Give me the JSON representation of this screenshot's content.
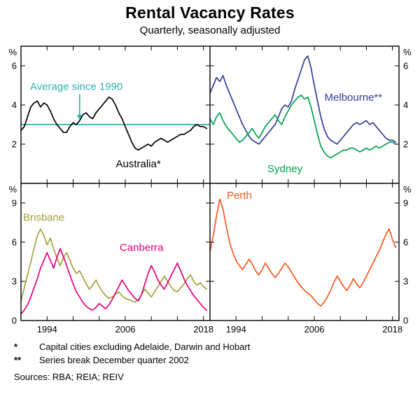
{
  "footnotes": [
    {
      "marker": "*",
      "text": "Capital cities excluding Adelaide, Darwin and Hobart"
    },
    {
      "marker": "**",
      "text": "Series break December quarter 2002"
    }
  ],
  "sources": "Sources: RBA; REIA; REIV",
  "chart_data": {
    "type": "line",
    "title": "Rental Vacancy Rates",
    "subtitle": "Quarterly, seasonally adjusted",
    "unit": "%",
    "x": {
      "start": 1990,
      "step": 0.5,
      "lim": [
        1990,
        2019
      ],
      "ticks": [
        1990,
        1994,
        1998,
        2002,
        2006,
        2010,
        2014,
        2018
      ],
      "tick_labels": [
        1994,
        2006,
        2018
      ]
    },
    "panels": [
      {
        "position": "top-left",
        "ylim": [
          0,
          7
        ],
        "yticks": [
          2,
          4,
          6
        ],
        "label_side": "left",
        "hline": {
          "label": "Average since 1990",
          "value": 3.0,
          "color": "#2fb1a8"
        },
        "series": [
          {
            "name": "Australia*",
            "color": "#000000",
            "values": [
              2.7,
              2.9,
              3.4,
              3.9,
              4.1,
              4.2,
              3.9,
              4.1,
              4.0,
              3.7,
              3.3,
              3.0,
              2.8,
              2.6,
              2.6,
              2.9,
              3.1,
              3.0,
              3.2,
              3.5,
              3.6,
              3.4,
              3.3,
              3.6,
              3.8,
              4.0,
              4.2,
              4.4,
              4.3,
              4.0,
              3.6,
              3.3,
              2.9,
              2.5,
              2.1,
              1.8,
              1.7,
              1.8,
              1.9,
              2.0,
              1.9,
              2.1,
              2.2,
              2.3,
              2.2,
              2.1,
              2.2,
              2.3,
              2.4,
              2.5,
              2.5,
              2.6,
              2.7,
              2.9,
              3.0,
              2.9,
              2.9,
              2.8
            ]
          }
        ],
        "annotations": [
          {
            "text": "Average since 1990",
            "x": 1998.5,
            "y": 4.95,
            "color": "#2fb1a8",
            "arrow": {
              "x": 1999,
              "y_from": 4.55,
              "y_to": 3.25
            }
          },
          {
            "text": "Australia*",
            "x": 2008,
            "y": 1.0,
            "color": "#000000"
          }
        ]
      },
      {
        "position": "top-right",
        "ylim": [
          0,
          7
        ],
        "yticks": [
          2,
          4,
          6
        ],
        "label_side": "right",
        "series": [
          {
            "name": "Melbourne**",
            "color": "#303d99",
            "values": [
              4.6,
              5.0,
              5.4,
              5.2,
              5.5,
              5.0,
              4.6,
              4.2,
              3.8,
              3.4,
              3.0,
              2.7,
              2.4,
              2.2,
              2.1,
              2.0,
              2.2,
              2.4,
              2.6,
              2.8,
              3.0,
              3.4,
              3.8,
              4.0,
              3.9,
              4.2,
              4.8,
              5.3,
              5.8,
              6.3,
              6.5,
              5.9,
              5.0,
              4.2,
              3.4,
              2.8,
              2.4,
              2.2,
              2.1,
              2.0,
              2.2,
              2.4,
              2.6,
              2.8,
              3.0,
              3.1,
              3.0,
              3.1,
              3.2,
              3.0,
              3.1,
              2.9,
              2.7,
              2.5,
              2.3,
              2.2,
              2.2,
              2.1
            ]
          },
          {
            "name": "Sydney",
            "color": "#00a24c",
            "values": [
              3.3,
              3.0,
              3.4,
              3.6,
              3.2,
              2.9,
              2.7,
              2.5,
              2.3,
              2.1,
              2.2,
              2.4,
              2.6,
              2.8,
              2.5,
              2.3,
              2.6,
              2.9,
              3.1,
              3.3,
              3.5,
              3.2,
              3.0,
              3.4,
              3.7,
              4.0,
              4.2,
              4.4,
              4.5,
              4.3,
              4.4,
              3.9,
              3.2,
              2.5,
              1.9,
              1.6,
              1.4,
              1.3,
              1.4,
              1.5,
              1.6,
              1.7,
              1.7,
              1.8,
              1.8,
              1.7,
              1.6,
              1.7,
              1.8,
              1.7,
              1.8,
              1.9,
              1.8,
              1.9,
              2.0,
              2.1,
              2.1,
              2.0
            ]
          }
        ],
        "annotations": [
          {
            "text": "Melbourne**",
            "x": 2012,
            "y": 4.4,
            "color": "#303d99"
          },
          {
            "text": "Sydney",
            "x": 2001.5,
            "y": 0.75,
            "color": "#00a24c"
          }
        ]
      },
      {
        "position": "bottom-left",
        "ylim": [
          0,
          10.5
        ],
        "yticks": [
          0,
          3,
          6,
          9
        ],
        "label_side": "left",
        "series": [
          {
            "name": "Brisbane",
            "color": "#a2a338",
            "values": [
              1.5,
              2.5,
              3.5,
              4.5,
              5.5,
              6.5,
              7.0,
              6.5,
              5.8,
              6.3,
              5.5,
              4.8,
              4.2,
              4.8,
              5.2,
              4.6,
              4.0,
              3.6,
              3.8,
              3.3,
              2.8,
              2.4,
              2.7,
              3.1,
              2.6,
              2.2,
              1.9,
              1.7,
              1.8,
              2.0,
              2.2,
              1.9,
              1.7,
              1.6,
              1.5,
              1.4,
              1.6,
              2.0,
              2.4,
              2.1,
              1.8,
              2.2,
              2.6,
              3.0,
              3.4,
              3.0,
              2.6,
              2.3,
              2.2,
              2.5,
              2.8,
              3.2,
              3.5,
              3.0,
              2.7,
              2.9,
              2.6,
              2.4
            ]
          },
          {
            "name": "Canberra",
            "color": "#e4007d",
            "values": [
              0.5,
              0.8,
              1.2,
              1.8,
              2.5,
              3.2,
              4.0,
              4.6,
              5.2,
              4.6,
              4.0,
              4.8,
              5.5,
              4.9,
              4.2,
              3.5,
              2.8,
              2.2,
              1.8,
              1.4,
              1.1,
              0.9,
              0.8,
              1.0,
              1.3,
              1.1,
              0.9,
              1.2,
              1.6,
              2.1,
              2.6,
              3.1,
              2.7,
              2.3,
              2.0,
              1.7,
              1.5,
              2.0,
              2.8,
              3.6,
              4.2,
              3.7,
              3.1,
              2.7,
              2.4,
              2.9,
              3.4,
              3.9,
              4.4,
              3.8,
              3.2,
              2.7,
              2.3,
              1.9,
              1.6,
              1.3,
              1.0,
              0.8
            ]
          }
        ],
        "annotations": [
          {
            "text": "Brisbane",
            "x": 1993.5,
            "y": 7.9,
            "color": "#a2a338"
          },
          {
            "text": "Canberra",
            "x": 2008.5,
            "y": 5.6,
            "color": "#e4007d"
          }
        ]
      },
      {
        "position": "bottom-right",
        "ylim": [
          0,
          10.5
        ],
        "yticks": [
          0,
          3,
          6,
          9
        ],
        "label_side": "right",
        "series": [
          {
            "name": "Perth",
            "color": "#f6581f",
            "values": [
              5.3,
              6.5,
              8.0,
              9.3,
              8.5,
              7.2,
              6.0,
              5.2,
              4.6,
              4.2,
              3.9,
              4.3,
              4.7,
              4.3,
              3.8,
              3.5,
              3.9,
              4.4,
              4.0,
              3.6,
              3.3,
              3.6,
              4.0,
              4.4,
              4.1,
              3.7,
              3.3,
              2.9,
              2.6,
              2.3,
              2.1,
              1.9,
              1.6,
              1.3,
              1.1,
              1.4,
              1.8,
              2.3,
              2.9,
              3.4,
              3.0,
              2.6,
              2.3,
              2.7,
              3.2,
              2.8,
              2.5,
              2.9,
              3.4,
              3.9,
              4.4,
              4.9,
              5.4,
              6.0,
              6.6,
              7.0,
              6.2,
              5.6
            ]
          }
        ],
        "annotations": [
          {
            "text": "Perth",
            "x": 1994.5,
            "y": 9.6,
            "color": "#f6581f"
          }
        ]
      }
    ]
  }
}
